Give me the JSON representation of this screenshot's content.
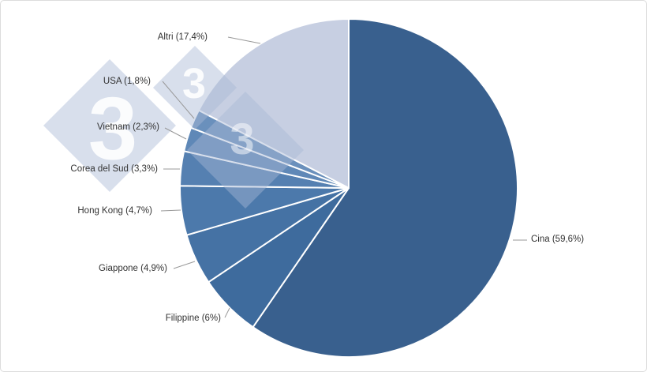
{
  "chart_data": {
    "type": "pie",
    "title": "",
    "unit": "%",
    "categories": [
      "Cina",
      "Filippine",
      "Giappone",
      "Hong Kong",
      "Corea del Sud",
      "Vietnam",
      "USA",
      "Altri"
    ],
    "values": [
      59.6,
      6,
      4.9,
      4.7,
      3.3,
      2.3,
      1.8,
      17.4
    ],
    "labels": [
      "Cina (59,6%)",
      "Filippine (6%)",
      "Giappone (4,9%)",
      "Hong Kong (4,7%)",
      "Corea del Sud (3,3%)",
      "Vietnam (2,3%)",
      "USA (1,8%)",
      "Altri (17,4%)"
    ],
    "colors": [
      "#39608E",
      "#3E6B9D",
      "#4572A4",
      "#4C79AB",
      "#5580B1",
      "#5F88B7",
      "#6A90BC",
      "#C7CFE2"
    ],
    "slice_border_color": "#FFFFFF",
    "leader_line_color": "#999999",
    "start_angle": 0,
    "direction": "clockwise",
    "legend": "none",
    "grid": false
  },
  "watermark": {
    "glyph": "3",
    "diamond_color": "#A8B7D5",
    "glyph_color": "#FFFFFF"
  }
}
